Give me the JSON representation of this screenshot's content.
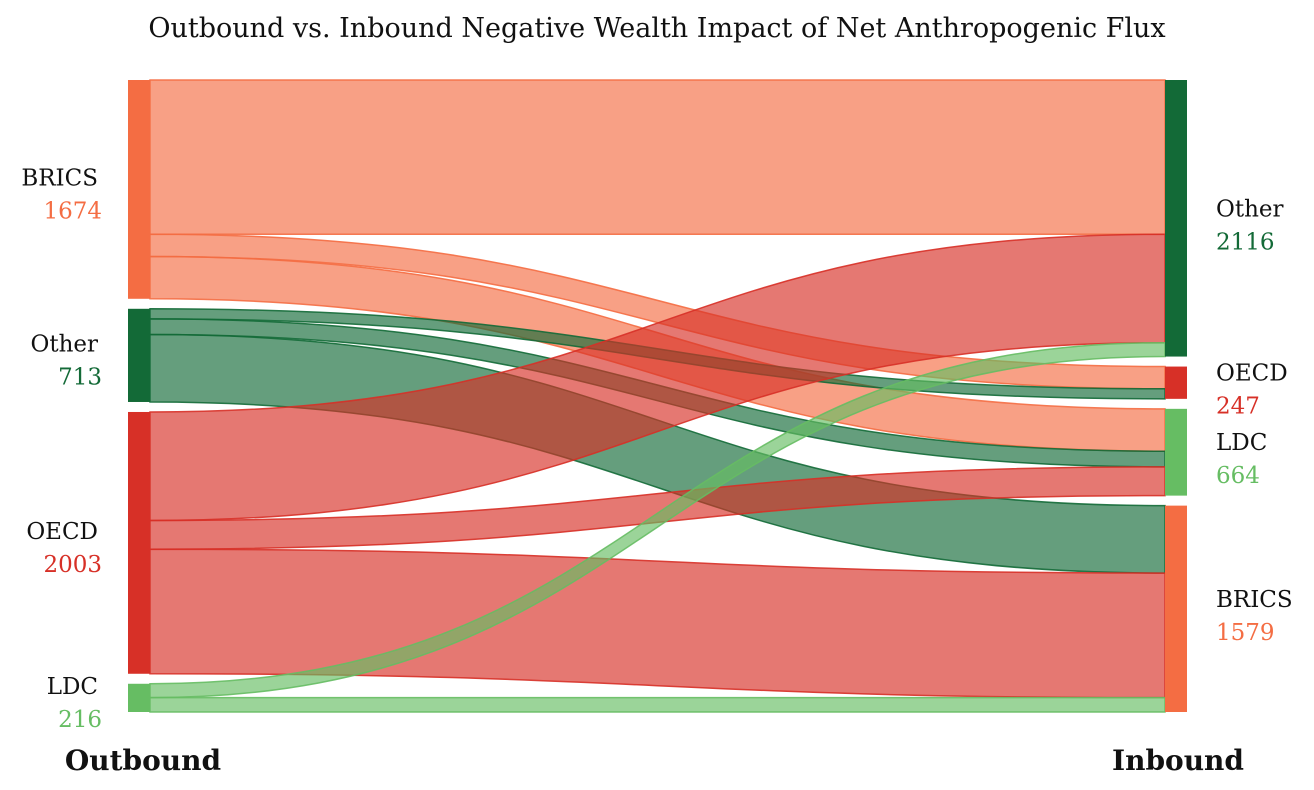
{
  "chart_data": {
    "type": "sankey",
    "title": "Outbound vs. Inbound Negative Wealth Impact of Net Anthropogenic Flux",
    "left_label": "Outbound",
    "right_label": "Inbound",
    "colors": {
      "BRICS": "#f46d43",
      "Other": "#136a37",
      "OECD": "#d73027",
      "LDC": "#66bd63"
    },
    "sources": [
      {
        "name": "BRICS",
        "value": 1674
      },
      {
        "name": "Other",
        "value": 713
      },
      {
        "name": "OECD",
        "value": 2003
      },
      {
        "name": "LDC",
        "value": 216
      }
    ],
    "targets": [
      {
        "name": "Other",
        "value": 2116
      },
      {
        "name": "OECD",
        "value": 247
      },
      {
        "name": "LDC",
        "value": 664
      },
      {
        "name": "BRICS",
        "value": 1579
      }
    ],
    "flows": [
      {
        "source": "BRICS",
        "target": "Other",
        "value": 1180
      },
      {
        "source": "BRICS",
        "target": "OECD",
        "value": 170
      },
      {
        "source": "BRICS",
        "target": "LDC",
        "value": 324
      },
      {
        "source": "Other",
        "target": "OECD",
        "value": 77
      },
      {
        "source": "Other",
        "target": "LDC",
        "value": 120
      },
      {
        "source": "Other",
        "target": "BRICS",
        "value": 516
      },
      {
        "source": "OECD",
        "target": "Other",
        "value": 830
      },
      {
        "source": "OECD",
        "target": "LDC",
        "value": 220
      },
      {
        "source": "OECD",
        "target": "BRICS",
        "value": 953
      },
      {
        "source": "LDC",
        "target": "Other",
        "value": 106
      },
      {
        "source": "LDC",
        "target": "BRICS",
        "value": 110
      }
    ]
  }
}
